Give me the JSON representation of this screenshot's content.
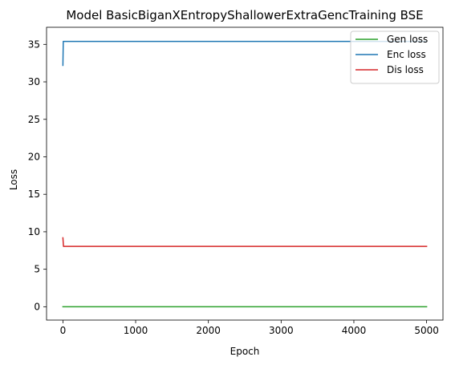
{
  "chart_data": {
    "type": "line",
    "title": "Model BasicBiganXEntropyShallowerExtraGencTraining BSE",
    "xlabel": "Epoch",
    "ylabel": "Loss",
    "xlim": [
      -225,
      5225
    ],
    "ylim": [
      -1.78,
      37.28
    ],
    "xticks": [
      0,
      1000,
      2000,
      3000,
      4000,
      5000
    ],
    "yticks": [
      0,
      5,
      10,
      15,
      20,
      25,
      30,
      35
    ],
    "grid": false,
    "legend_position": "top-right",
    "series": [
      {
        "name": "Gen loss",
        "color": "#2ca02c",
        "points": [
          [
            0,
            0.0
          ],
          [
            5000,
            0.0
          ]
        ]
      },
      {
        "name": "Enc loss",
        "color": "#1f77b4",
        "points": [
          [
            0,
            32.2
          ],
          [
            5,
            35.4
          ],
          [
            5000,
            35.4
          ]
        ]
      },
      {
        "name": "Dis loss",
        "color": "#d62728",
        "points": [
          [
            0,
            9.2
          ],
          [
            8,
            8.05
          ],
          [
            5000,
            8.05
          ]
        ]
      }
    ]
  }
}
